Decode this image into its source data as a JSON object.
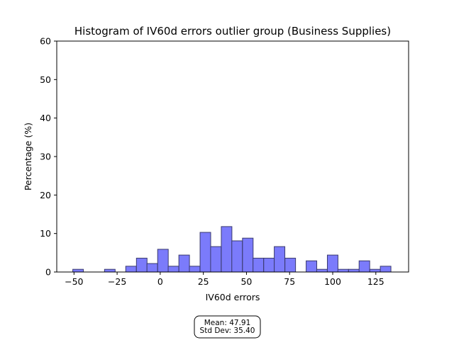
{
  "chart_data": {
    "type": "bar",
    "title": "Histogram of IV60d errors outlier group (Business Supplies)",
    "xlabel": "IV60d errors",
    "ylabel": "Percentage (%)",
    "xlim": [
      -60,
      144
    ],
    "ylim": [
      0,
      60
    ],
    "xticks": [
      -50,
      -25,
      0,
      25,
      50,
      75,
      100,
      125
    ],
    "xtick_labels": [
      "−50",
      "−25",
      "0",
      "25",
      "50",
      "75",
      "100",
      "125"
    ],
    "yticks": [
      0,
      10,
      20,
      30,
      40,
      50,
      60
    ],
    "ytick_labels": [
      "0",
      "10",
      "20",
      "30",
      "40",
      "50",
      "60"
    ],
    "bin_width": 6.15,
    "bins": [
      {
        "x0": -50.7,
        "value": 0.7
      },
      {
        "x0": -32.3,
        "value": 0.7
      },
      {
        "x0": -20.0,
        "value": 1.5
      },
      {
        "x0": -13.8,
        "value": 3.6
      },
      {
        "x0": -7.7,
        "value": 2.2
      },
      {
        "x0": -1.5,
        "value": 5.9
      },
      {
        "x0": 4.6,
        "value": 1.5
      },
      {
        "x0": 10.8,
        "value": 4.4
      },
      {
        "x0": 16.9,
        "value": 1.5
      },
      {
        "x0": 23.1,
        "value": 10.3
      },
      {
        "x0": 29.2,
        "value": 6.6
      },
      {
        "x0": 35.4,
        "value": 11.8
      },
      {
        "x0": 41.5,
        "value": 8.1
      },
      {
        "x0": 47.7,
        "value": 8.8
      },
      {
        "x0": 53.8,
        "value": 3.6
      },
      {
        "x0": 60.0,
        "value": 3.6
      },
      {
        "x0": 66.1,
        "value": 6.6
      },
      {
        "x0": 72.3,
        "value": 3.6
      },
      {
        "x0": 84.6,
        "value": 2.9
      },
      {
        "x0": 90.7,
        "value": 0.7
      },
      {
        "x0": 96.9,
        "value": 4.4
      },
      {
        "x0": 103.0,
        "value": 0.7
      },
      {
        "x0": 109.2,
        "value": 0.7
      },
      {
        "x0": 115.3,
        "value": 2.9
      },
      {
        "x0": 121.5,
        "value": 0.7
      },
      {
        "x0": 127.6,
        "value": 1.5
      }
    ],
    "bar_color": "#7b7bfb",
    "bar_edge_color": "#3a3a6e",
    "grid": false,
    "legend": "none",
    "annotation": {
      "mean_text": "Mean: 47.91",
      "std_text": "Std Dev: 35.40"
    }
  }
}
